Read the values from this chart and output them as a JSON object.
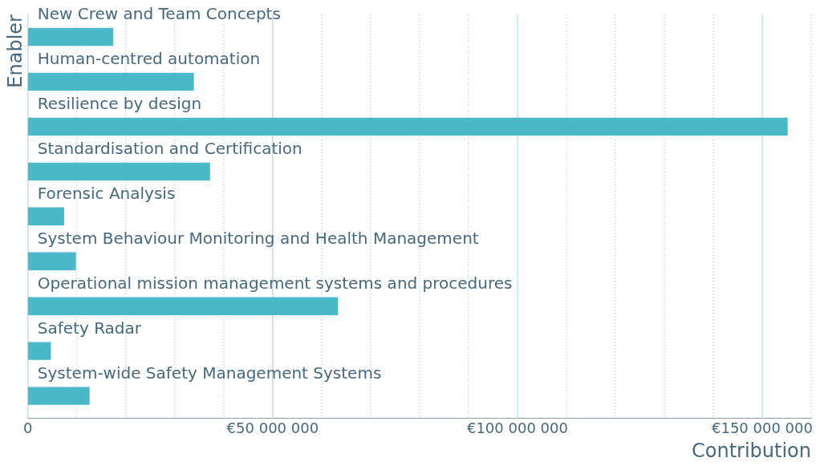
{
  "chart_data": {
    "type": "bar",
    "orientation": "horizontal",
    "xlabel": "Contribution",
    "ylabel": "Enabler",
    "categories": [
      "New Crew and Team Concepts",
      "Human-centred automation",
      "Resilience by design",
      "Standardisation and Certification",
      "Forensic Analysis",
      "System Behaviour Monitoring and Health Management",
      "Operational mission management systems and procedures",
      "Safety Radar",
      "System-wide Safety Management Systems"
    ],
    "values": [
      17400000,
      33900000,
      155200000,
      37200000,
      7400000,
      9800000,
      63300000,
      4700000,
      12600000
    ],
    "color": "#4bb8c9",
    "xlim": [
      0,
      160000000
    ],
    "xticks": [
      0,
      {
        "value": 10000000,
        "label": null
      },
      {
        "value": 20000000,
        "label": null
      },
      {
        "value": 30000000,
        "label": null
      },
      {
        "value": 40000000,
        "label": null
      },
      {
        "value": 50000000,
        "label": "€50 000 000"
      },
      {
        "value": 60000000,
        "label": null
      },
      {
        "value": 70000000,
        "label": null
      },
      {
        "value": 80000000,
        "label": null
      },
      {
        "value": 90000000,
        "label": null
      },
      {
        "value": 100000000,
        "label": "€100 000 000"
      },
      {
        "value": 110000000,
        "label": null
      },
      {
        "value": 120000000,
        "label": null
      },
      {
        "value": 130000000,
        "label": null
      },
      {
        "value": 140000000,
        "label": null
      },
      {
        "value": 150000000,
        "label": "€150 000 000"
      },
      {
        "value": 160000000,
        "label": null
      }
    ],
    "grid": "x",
    "legend": false
  }
}
